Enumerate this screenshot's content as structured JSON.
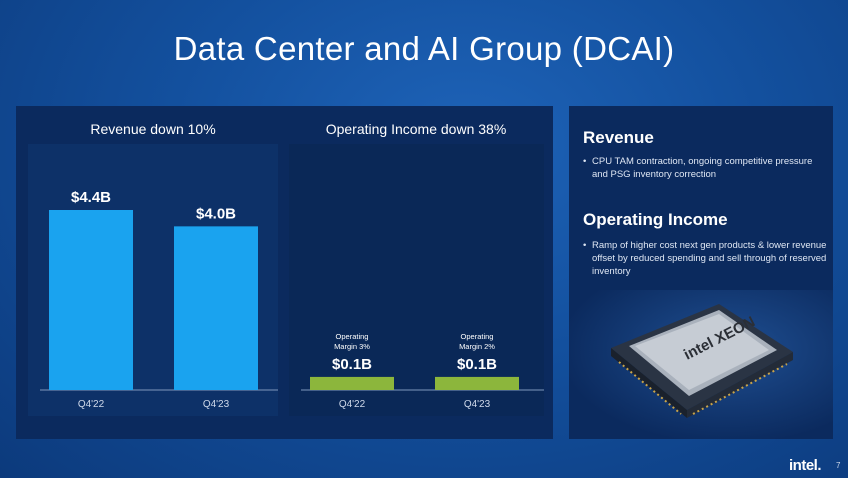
{
  "slide": {
    "title": "Data Center and AI Group (DCAI)",
    "brand": "intel.",
    "page_number": "7"
  },
  "chart_data": [
    {
      "type": "bar",
      "title": "Revenue down 10%",
      "categories": [
        "Q4'22",
        "Q4'23"
      ],
      "values": [
        4.4,
        4.0
      ],
      "value_labels": [
        "$4.4B",
        "$4.0B"
      ],
      "unit": "$B",
      "color": "#1aa3ef",
      "ylim": [
        0,
        4.4
      ],
      "grid": false
    },
    {
      "type": "bar",
      "title": "Operating Income down 38%",
      "categories": [
        "Q4'22",
        "Q4'23"
      ],
      "values": [
        0.1,
        0.1
      ],
      "value_labels": [
        "$0.1B",
        "$0.1B"
      ],
      "annotations": [
        [
          "Operating",
          "Margin 3%"
        ],
        [
          "Operating",
          "Margin 2%"
        ]
      ],
      "unit": "$B",
      "color": "#8cb63c",
      "grid": false
    }
  ],
  "sidebar": {
    "revenue_heading": "Revenue",
    "revenue_bullet": "CPU TAM contraction, ongoing competitive pressure and PSG inventory correction",
    "opinc_heading": "Operating Income",
    "opinc_bullet": "Ramp of higher cost next gen products & lower revenue offset by reduced spending and sell through of reserved inventory",
    "chip_text": "intel XEON"
  }
}
